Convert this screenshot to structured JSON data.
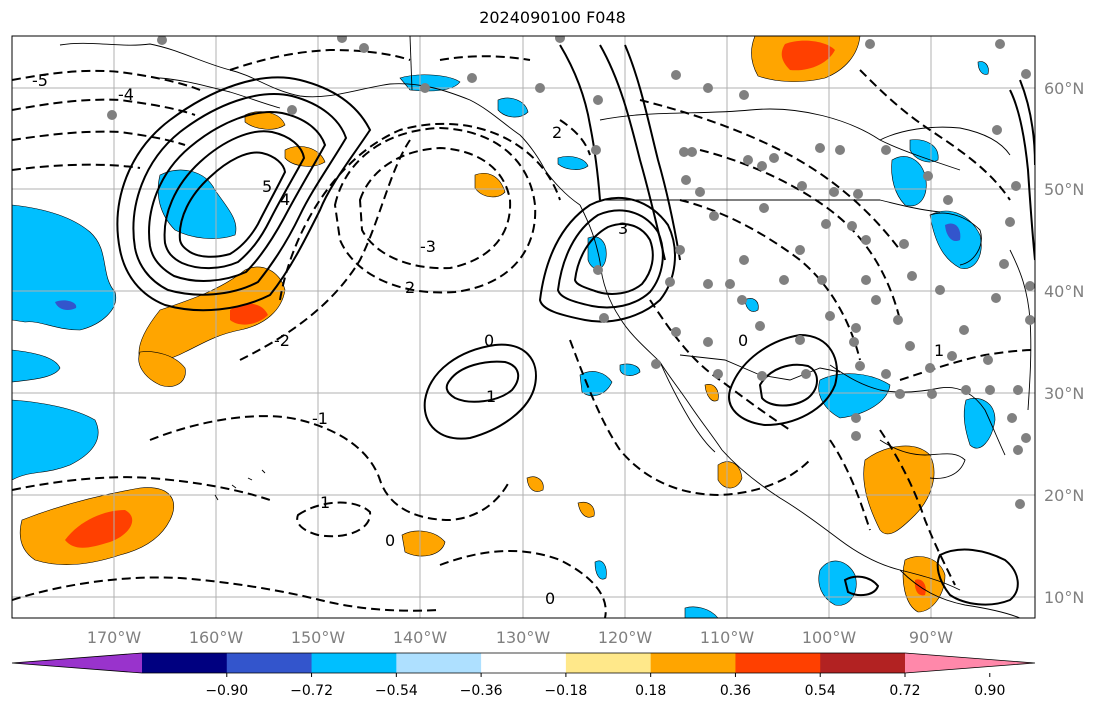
{
  "map": {
    "title": "2024090100 F048",
    "lon_labels": [
      "170°W",
      "160°W",
      "150°W",
      "140°W",
      "130°W",
      "120°W",
      "110°W",
      "100°W",
      "90°W"
    ],
    "lat_labels": [
      "60°N",
      "50°N",
      "40°N",
      "30°N",
      "20°N",
      "10°N"
    ],
    "contour_labels": [
      "5",
      "4",
      "3",
      "2",
      "1",
      "0",
      "-1",
      "-2",
      "-3",
      "-4",
      "-5",
      "0",
      "1",
      "2",
      "0",
      "1",
      "0"
    ]
  },
  "colorbar": {
    "tick_labels": [
      "−0.90",
      "−0.72",
      "−0.54",
      "−0.36",
      "−0.18",
      "0.18",
      "0.36",
      "0.54",
      "0.72",
      "0.90"
    ],
    "colors": [
      "#9933cc",
      "#000080",
      "#3355cc",
      "#00bfff",
      "#aee0ff",
      "#ffffff",
      "#ffe88a",
      "#ffa500",
      "#ff4000",
      "#b22222",
      "#ff88aa"
    ],
    "extend": "both"
  },
  "colors": {
    "positive_fill": "#ffa500",
    "strong_positive_fill": "#ff4000",
    "negative_fill": "#00bfff",
    "strong_negative_fill": "#3355cc",
    "grid": "#b0b0b0",
    "point_markers": "#808080"
  }
}
